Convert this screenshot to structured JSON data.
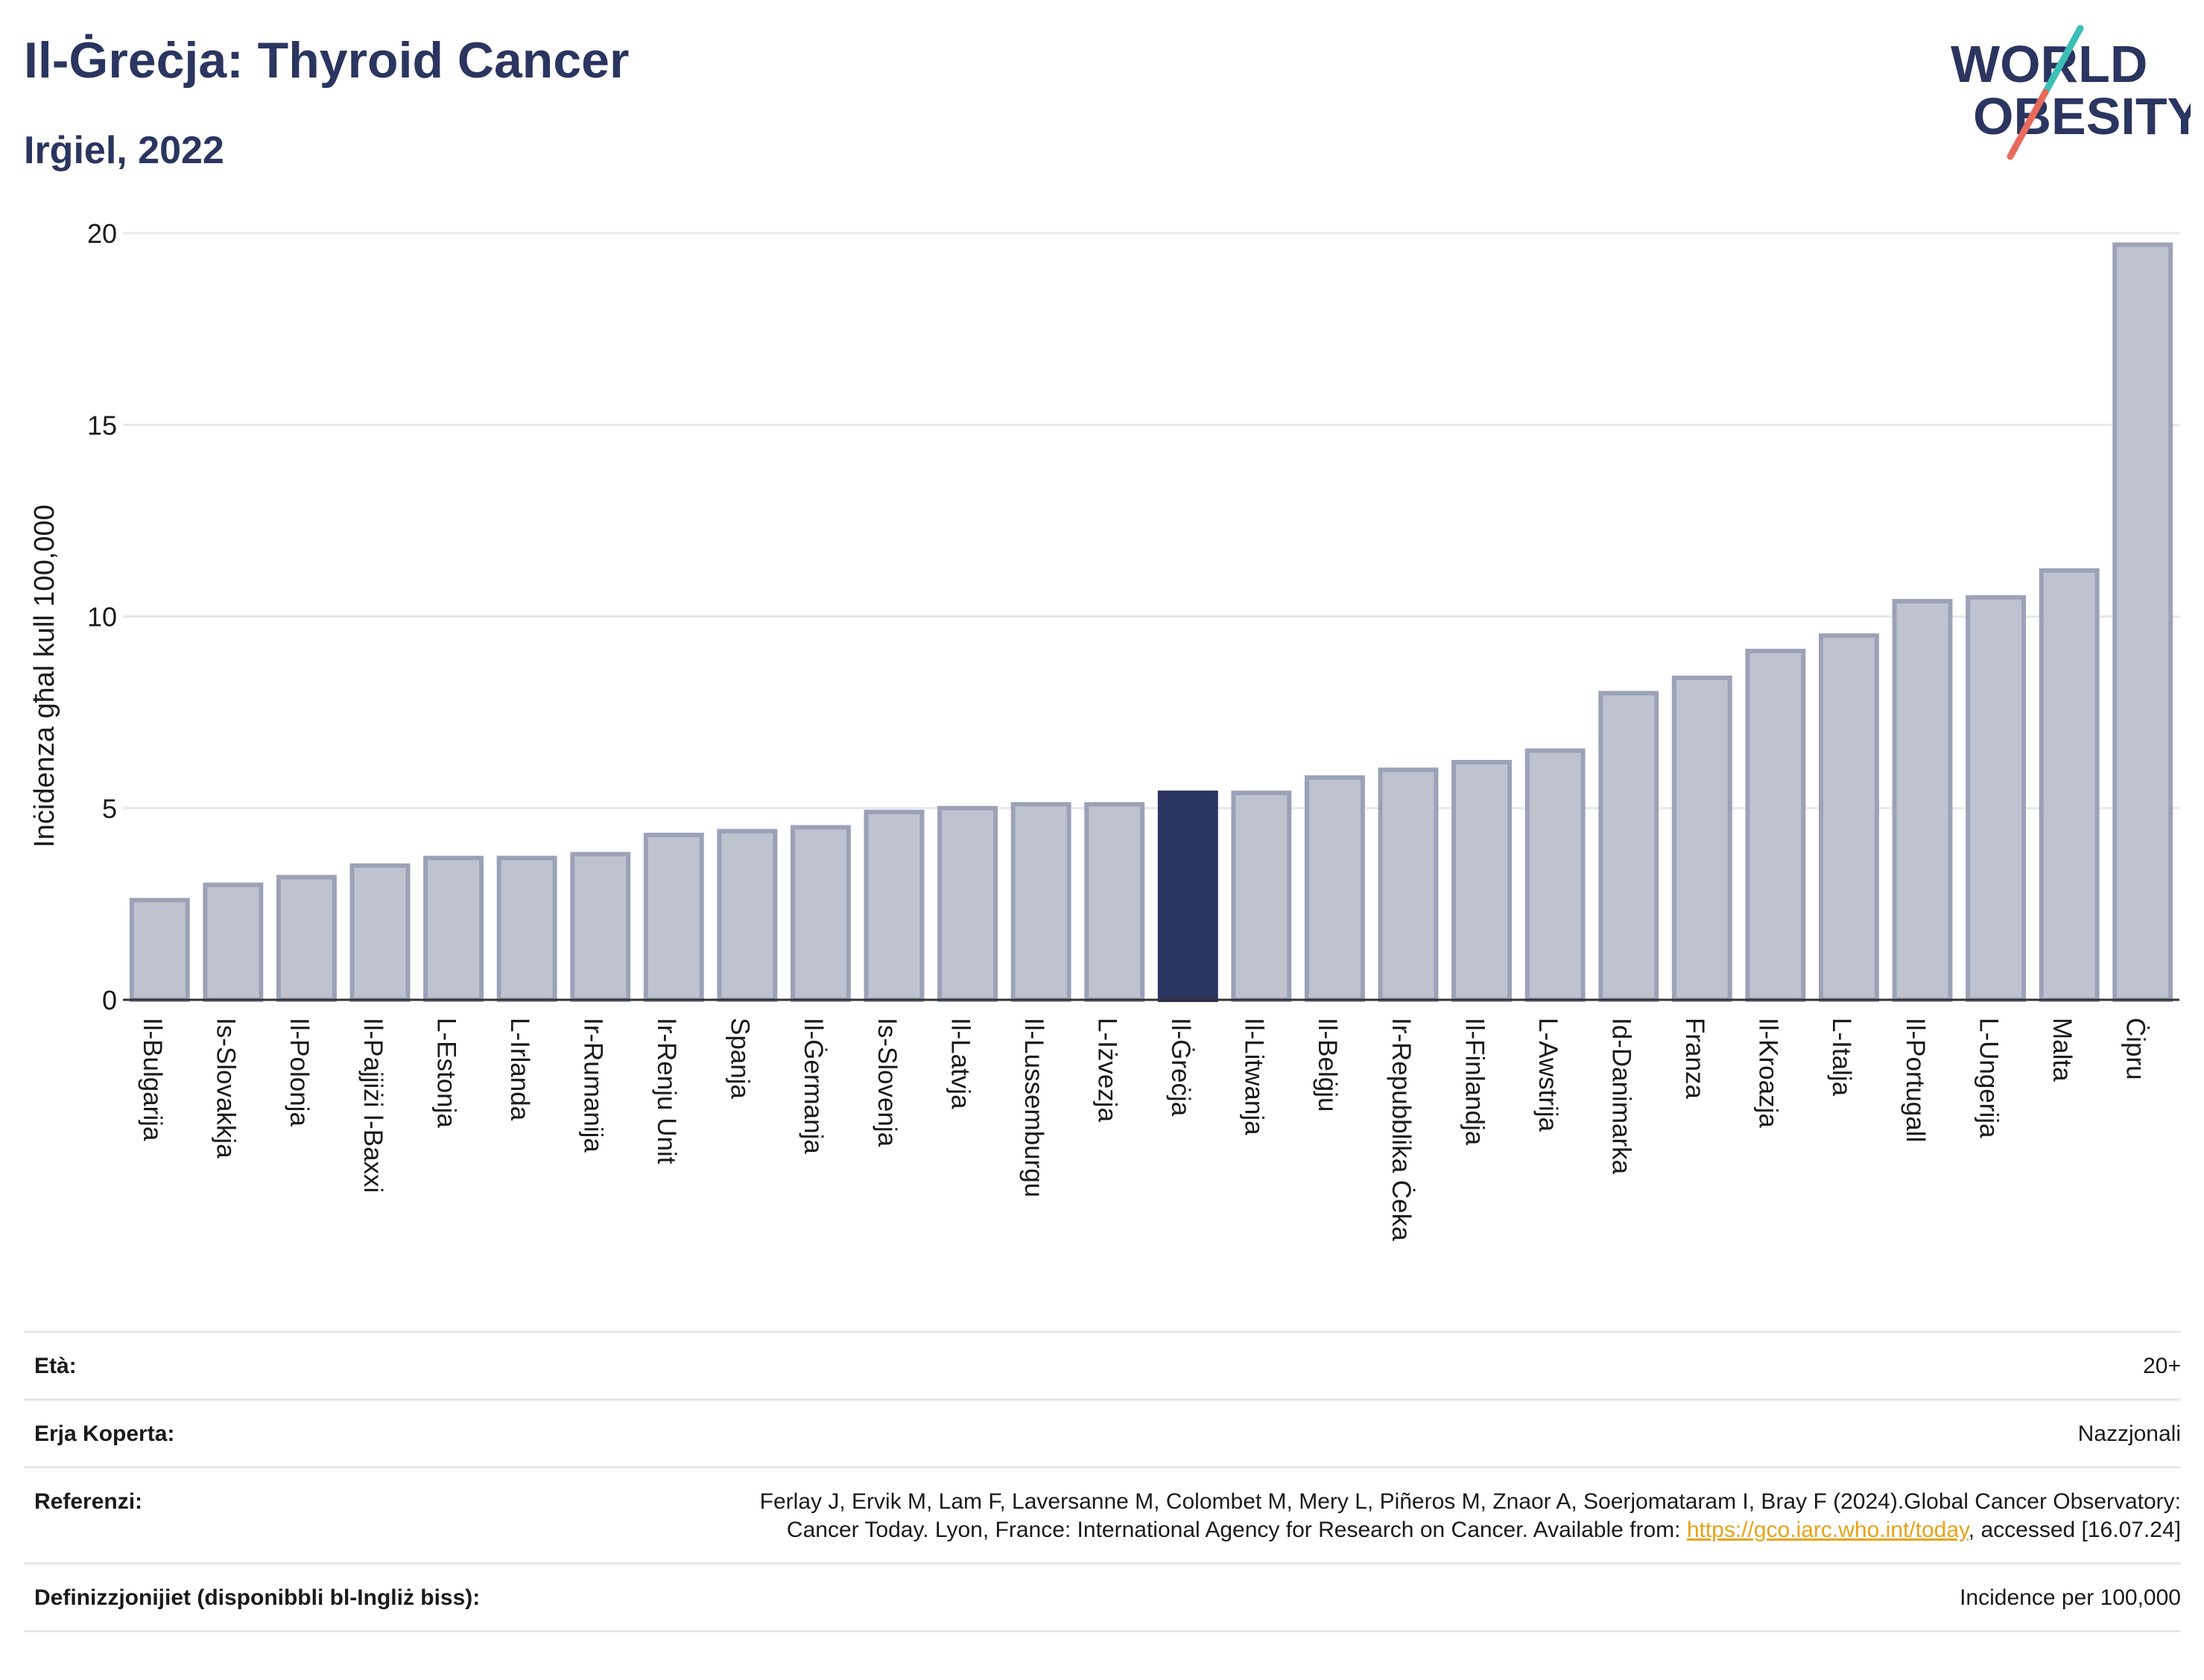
{
  "header": {
    "title": "Il-Ġreċja: Thyroid Cancer",
    "subtitle": "Irġiel, 2022"
  },
  "logo": {
    "line1": "WORLD",
    "line2": "OBESITY",
    "colors": {
      "text": "#2a3560",
      "teal": "#3bbfb8",
      "coral": "#e86a5c"
    }
  },
  "colors": {
    "bar_fill": "#bfc3d0",
    "bar_stroke": "#9ba2b8",
    "highlight": "#2a3560",
    "grid": "#e6e8ee",
    "axis": "#333333"
  },
  "chart_data": {
    "type": "bar",
    "ylabel": "Inċidenza għal kull 100,000",
    "ylim": [
      0,
      20
    ],
    "yticks": [
      0,
      5,
      10,
      15,
      20
    ],
    "grid": true,
    "highlight_category": "Il-Ġreċja",
    "categories": [
      "Il-Bulgarija",
      "Is-Slovakkja",
      "Il-Polonja",
      "Il-Pajjiżi l-Baxxi",
      "L-Estonja",
      "L-Irlanda",
      "Ir-Rumanija",
      "Ir-Renju Unit",
      "Spanja",
      "Il-Ġermanja",
      "Is-Slovenja",
      "Il-Latvja",
      "Il-Lussemburgu",
      "L-Iżvezja",
      "Il-Ġreċja",
      "Il-Litwanja",
      "Il-Belġju",
      "Ir-Repubblika Ċeka",
      "Il-Finlandja",
      "L-Awstrija",
      "Id-Danimarka",
      "Franza",
      "Il-Kroazja",
      "L-Italja",
      "Il-Portugall",
      "L-Ungerija",
      "Malta",
      "Ċipru"
    ],
    "values": [
      2.6,
      3.0,
      3.2,
      3.5,
      3.7,
      3.7,
      3.8,
      4.3,
      4.4,
      4.5,
      4.9,
      5.0,
      5.1,
      5.1,
      5.4,
      5.4,
      5.8,
      6.0,
      6.2,
      6.5,
      8.0,
      8.4,
      9.1,
      9.5,
      10.4,
      10.5,
      11.2,
      19.7
    ]
  },
  "info": {
    "age_label": "Età:",
    "age_value": "20+",
    "area_label": "Erja Koperta:",
    "area_value": "Nazzjonali",
    "ref_label": "Referenzi:",
    "ref_text_1": "Ferlay J, Ervik M, Lam F, Laversanne M, Colombet M, Mery L, Piñeros M, Znaor A, Soerjomataram I, Bray F (2024).Global Cancer Observatory: Cancer Today. Lyon, France: International Agency for Research on Cancer. Available from: ",
    "ref_link": "https://gco.iarc.who.int/today",
    "ref_text_2": ", accessed [16.07.24]",
    "def_label": "Definizzjonijiet (disponibbli bl-Ingliż biss):",
    "def_value": "Incidence per 100,000"
  }
}
